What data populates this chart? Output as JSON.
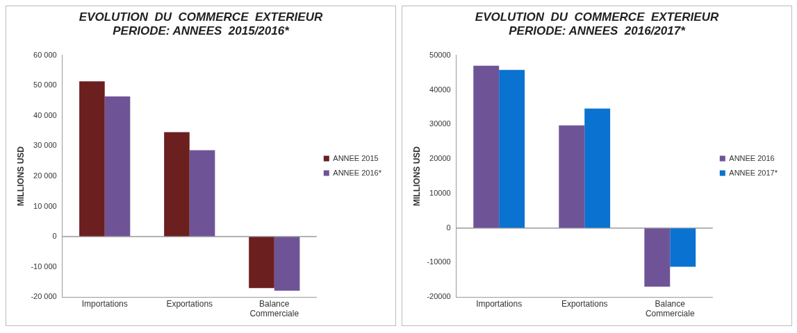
{
  "chart_data": [
    {
      "type": "bar",
      "title": [
        "EVOLUTION  DU  COMMERCE  EXTERIEUR",
        "PERIODE: ANNEES  2015/2016*"
      ],
      "ylabel": "MILLIONS USD",
      "categories": [
        "Importations",
        "Exportations",
        [
          "Balance",
          "Commerciale"
        ]
      ],
      "series": [
        {
          "name": "ANNEE 2015",
          "color": "#6b1f1f",
          "values": [
            51400,
            34600,
            -17000
          ]
        },
        {
          "name": "ANNEE 2016*",
          "color": "#6e5497",
          "values": [
            46400,
            28600,
            -17900
          ]
        }
      ],
      "ylim": [
        -20000,
        60000
      ],
      "yticks": [
        {
          "value": -20000,
          "label": "-20 000"
        },
        {
          "value": -10000,
          "label": "-10 000"
        },
        0,
        {
          "value": 10000,
          "label": "10 000"
        },
        {
          "value": 20000,
          "label": "20 000"
        },
        {
          "value": 30000,
          "label": "30 000"
        },
        {
          "value": 40000,
          "label": "40 000"
        },
        {
          "value": 50000,
          "label": "50 000"
        },
        {
          "value": 60000,
          "label": "60 000"
        }
      ],
      "grid": false,
      "legend": "right",
      "ref_lines": [
        {
          "axis": "y",
          "value": 0
        }
      ]
    },
    {
      "type": "bar",
      "title": [
        "EVOLUTION  DU  COMMERCE  EXTERIEUR",
        "PERIODE: ANNEES  2016/2017*"
      ],
      "ylabel": "MILLIONS USD",
      "categories": [
        "Importations",
        "Exportations",
        [
          "Balance",
          "Commerciale"
        ]
      ],
      "series": [
        {
          "name": "ANNEE 2016",
          "color": "#6e5497",
          "values": [
            47000,
            29700,
            -17000
          ]
        },
        {
          "name": "ANNEE 2017*",
          "color": "#0a72d0",
          "values": [
            45800,
            34600,
            -11200
          ]
        }
      ],
      "ylim": [
        -20000,
        50000
      ],
      "yticks": [
        -20000,
        -10000,
        0,
        10000,
        20000,
        30000,
        40000,
        50000
      ],
      "grid": false,
      "legend": "right",
      "ref_lines": [
        {
          "axis": "y",
          "value": 0
        }
      ]
    }
  ]
}
